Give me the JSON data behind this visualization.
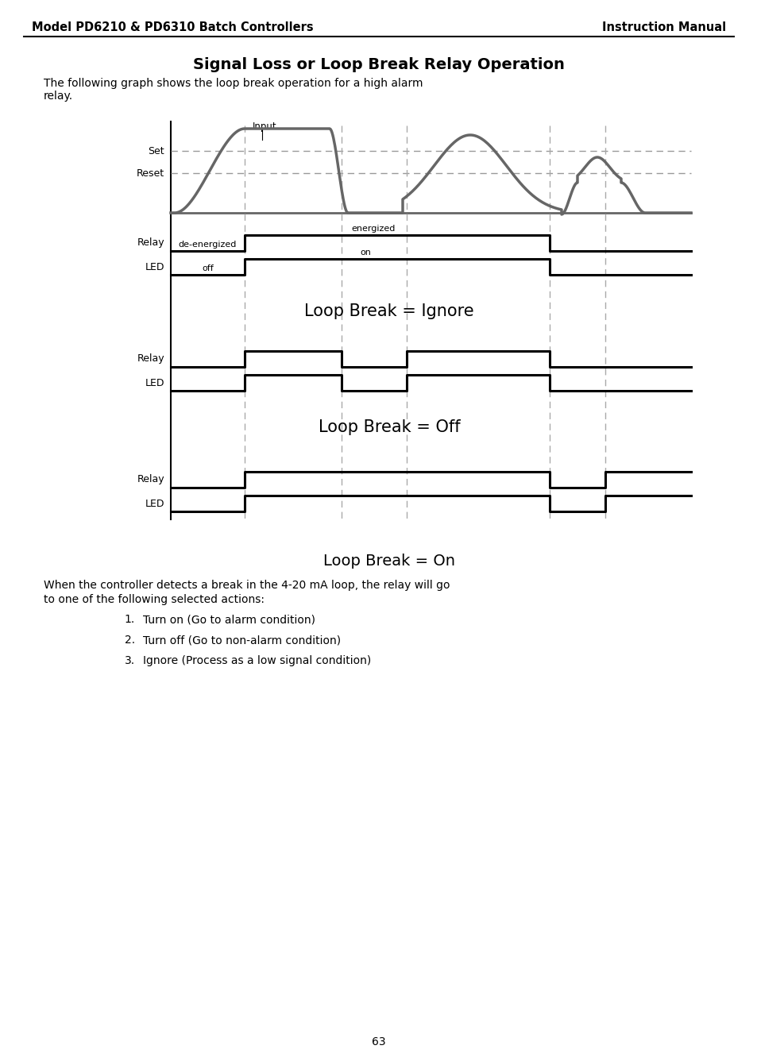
{
  "header_left": "Model PD6210 & PD6310 Batch Controllers",
  "header_right": "Instruction Manual",
  "title": "Signal Loss or Loop Break Relay Operation",
  "subtitle": "The following graph shows the loop break operation for a high alarm\nrelay.",
  "input_label": "Input",
  "set_label": "Set",
  "reset_label": "Reset",
  "relay_label": "Relay",
  "led_label": "LED",
  "de_energized": "de-energized",
  "energized": "energized",
  "off_label": "off",
  "on_label": "on",
  "loop_break_ignore": "Loop Break = Ignore",
  "loop_break_off": "Loop Break = Off",
  "loop_break_on": "Loop Break = On",
  "paragraph": "When the controller detects a break in the 4-20 mA loop, the relay will go\nto one of the following selected actions:",
  "list_items": [
    "Turn on (Go to alarm condition)",
    "Turn off (Go to non-alarm condition)",
    "Ignore (Process as a low signal condition)"
  ],
  "page_number": "63",
  "signal_color": "#666666",
  "dashed_color": "#888888",
  "line_color": "#000000",
  "bg_color": "#ffffff"
}
